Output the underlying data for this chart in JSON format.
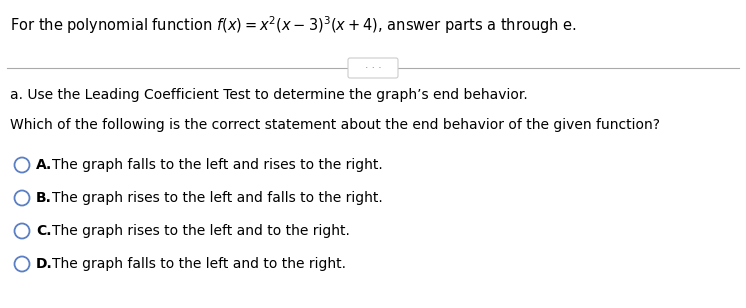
{
  "section_a": "a. Use the Leading Coefficient Test to determine the graph’s end behavior.",
  "question": "Which of the following is the correct statement about the end behavior of the given function?",
  "options": [
    {
      "label": "A.",
      "text": "The graph falls to the left and rises to the right."
    },
    {
      "label": "B.",
      "text": "The graph rises to the left and falls to the right."
    },
    {
      "label": "C.",
      "text": "The graph rises to the left and to the right."
    },
    {
      "label": "D.",
      "text": "The graph falls to the left and to the right."
    }
  ],
  "circle_color": "#5b7fc4",
  "text_color": "#000000",
  "background_color": "#ffffff",
  "font_size_title": 10.5,
  "font_size_body": 10.0,
  "font_size_options": 10.0,
  "line_color": "#aaaaaa",
  "dots_color": "#888888",
  "dots_box_color": "#cccccc"
}
